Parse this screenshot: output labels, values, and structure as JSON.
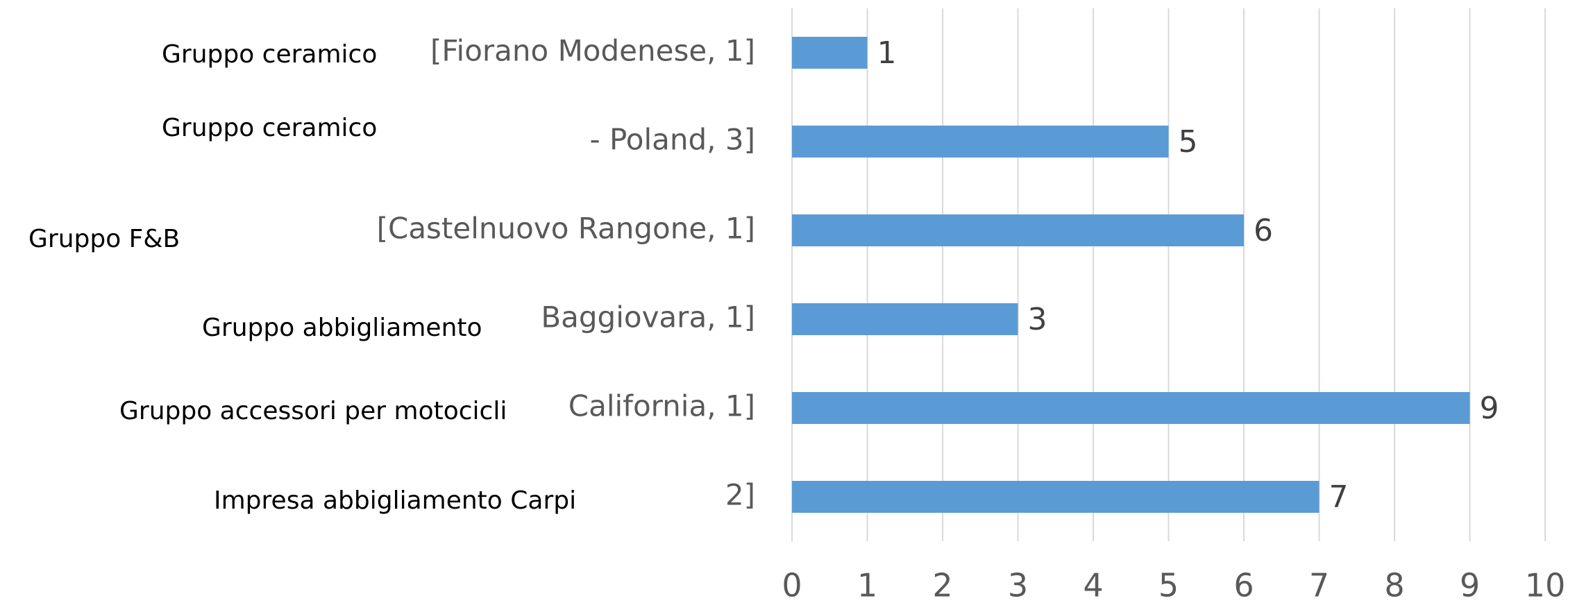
{
  "chart_data": {
    "type": "bar",
    "orientation": "horizontal",
    "categories": [
      "[Fiorano Modenese, 1]",
      "- Poland, 3]",
      "[Castelnuovo Rangone, 1]",
      "Baggiovara, 1]",
      "California, 1]",
      "2]"
    ],
    "overlay_labels": [
      "Gruppo ceramico",
      "Gruppo ceramico",
      "Gruppo F&B",
      "Gruppo abbigliamento",
      "Gruppo accessori per motocicli",
      "Impresa abbigliamento Carpi"
    ],
    "values": [
      1,
      5,
      6,
      3,
      9,
      7
    ],
    "color": "#5b9bd5",
    "xlim": [
      0,
      10
    ],
    "xticks": [
      0,
      1,
      2,
      3,
      4,
      5,
      6,
      7,
      8,
      9,
      10
    ],
    "grid": true
  }
}
